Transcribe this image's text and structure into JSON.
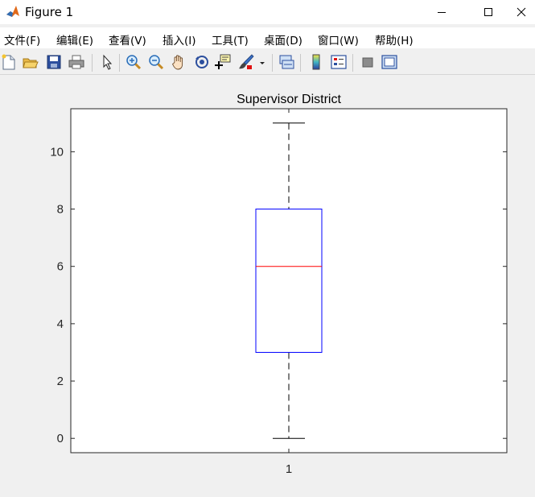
{
  "window": {
    "title": "Figure 1",
    "app_icon": "matlab-logo-icon",
    "controls": [
      "minimize-icon",
      "maximize-icon",
      "close-icon"
    ]
  },
  "menu": {
    "items": [
      {
        "label": "文件(F)"
      },
      {
        "label": "编辑(E)"
      },
      {
        "label": "查看(V)"
      },
      {
        "label": "插入(I)"
      },
      {
        "label": "工具(T)"
      },
      {
        "label": "桌面(D)"
      },
      {
        "label": "窗口(W)"
      },
      {
        "label": "帮助(H)"
      }
    ]
  },
  "toolbar": {
    "icons": [
      "new-figure-icon",
      "open-file-icon",
      "save-icon",
      "print-icon",
      "edit-plot-icon",
      "zoom-in-icon",
      "zoom-out-icon",
      "pan-icon",
      "rotate-3d-icon",
      "data-cursor-icon",
      "brush-icon",
      "link-plot-icon",
      "colorbar-icon",
      "legend-icon",
      "hide-plot-tools-icon",
      "show-plot-tools-icon"
    ]
  },
  "colors": {
    "box": "#0000ff",
    "median": "#ff0000",
    "whisker": "#000000",
    "axes_bg": "#ffffff",
    "figure_bg": "#f0f0f0"
  },
  "chart_data": {
    "type": "box",
    "title": "Supervisor District",
    "categories": [
      "1"
    ],
    "xlabel": "",
    "ylabel": "",
    "ylim": [
      -0.5,
      11.5
    ],
    "yticks": [
      0,
      2,
      4,
      6,
      8,
      10
    ],
    "grid": false,
    "series": [
      {
        "lower_whisker": 0,
        "q1": 3,
        "median": 6,
        "q3": 8,
        "upper_whisker": 11
      }
    ]
  }
}
